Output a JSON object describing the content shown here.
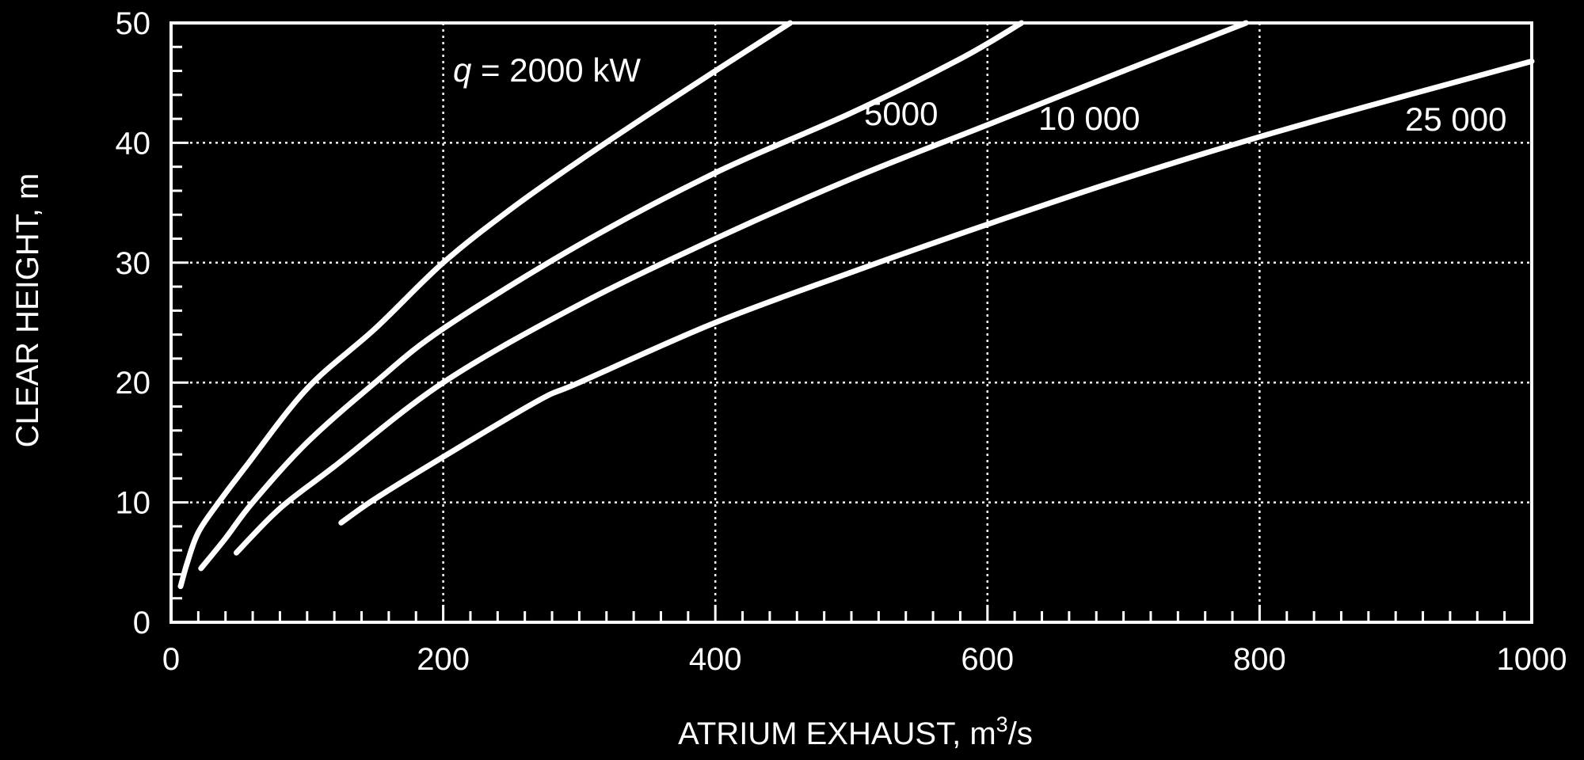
{
  "chart_data": {
    "type": "line",
    "xlabel": "ATRIUM EXHAUST, m",
    "xlabel_sup": "3",
    "xlabel_suffix": "/s",
    "ylabel": "CLEAR HEIGHT, m",
    "xlim": [
      0,
      1000
    ],
    "ylim": [
      0,
      50
    ],
    "x_ticks": [
      0,
      200,
      400,
      600,
      800,
      1000
    ],
    "y_ticks": [
      0,
      10,
      20,
      30,
      40,
      50
    ],
    "x_minor_step": 20,
    "y_minor_step": 2,
    "grid": true,
    "grid_style": "dotted",
    "colors": {
      "background": "#000000",
      "foreground": "#ffffff"
    },
    "series": [
      {
        "name": "q = 2000 kW",
        "label_prefix": "q",
        "label_rest": " = 2000 kW",
        "points": [
          [
            7,
            3
          ],
          [
            12,
            5
          ],
          [
            20,
            7.5
          ],
          [
            35,
            10
          ],
          [
            55,
            13
          ],
          [
            100,
            19.5
          ],
          [
            150,
            24.5
          ],
          [
            200,
            30
          ],
          [
            250,
            34.5
          ],
          [
            300,
            38.5
          ],
          [
            350,
            42.3
          ],
          [
            400,
            46
          ],
          [
            455,
            50
          ]
        ]
      },
      {
        "name": "5000",
        "points": [
          [
            22,
            4.5
          ],
          [
            40,
            7
          ],
          [
            60,
            10
          ],
          [
            100,
            15
          ],
          [
            150,
            20
          ],
          [
            200,
            24.5
          ],
          [
            300,
            31.5
          ],
          [
            400,
            37.5
          ],
          [
            500,
            42.5
          ],
          [
            580,
            47
          ],
          [
            625,
            50
          ]
        ]
      },
      {
        "name": "10 000",
        "points": [
          [
            48,
            5.8
          ],
          [
            80,
            9.5
          ],
          [
            120,
            13
          ],
          [
            200,
            20
          ],
          [
            300,
            26.5
          ],
          [
            400,
            32
          ],
          [
            500,
            37
          ],
          [
            600,
            41.5
          ],
          [
            700,
            46
          ],
          [
            790,
            50
          ]
        ]
      },
      {
        "name": "25 000",
        "points": [
          [
            125,
            8.3
          ],
          [
            150,
            10.3
          ],
          [
            200,
            13.8
          ],
          [
            270,
            18.5
          ],
          [
            300,
            20
          ],
          [
            400,
            25
          ],
          [
            500,
            29.2
          ],
          [
            600,
            33.2
          ],
          [
            700,
            37
          ],
          [
            800,
            40.5
          ],
          [
            900,
            43.7
          ],
          [
            1000,
            46.8
          ]
        ]
      }
    ]
  }
}
